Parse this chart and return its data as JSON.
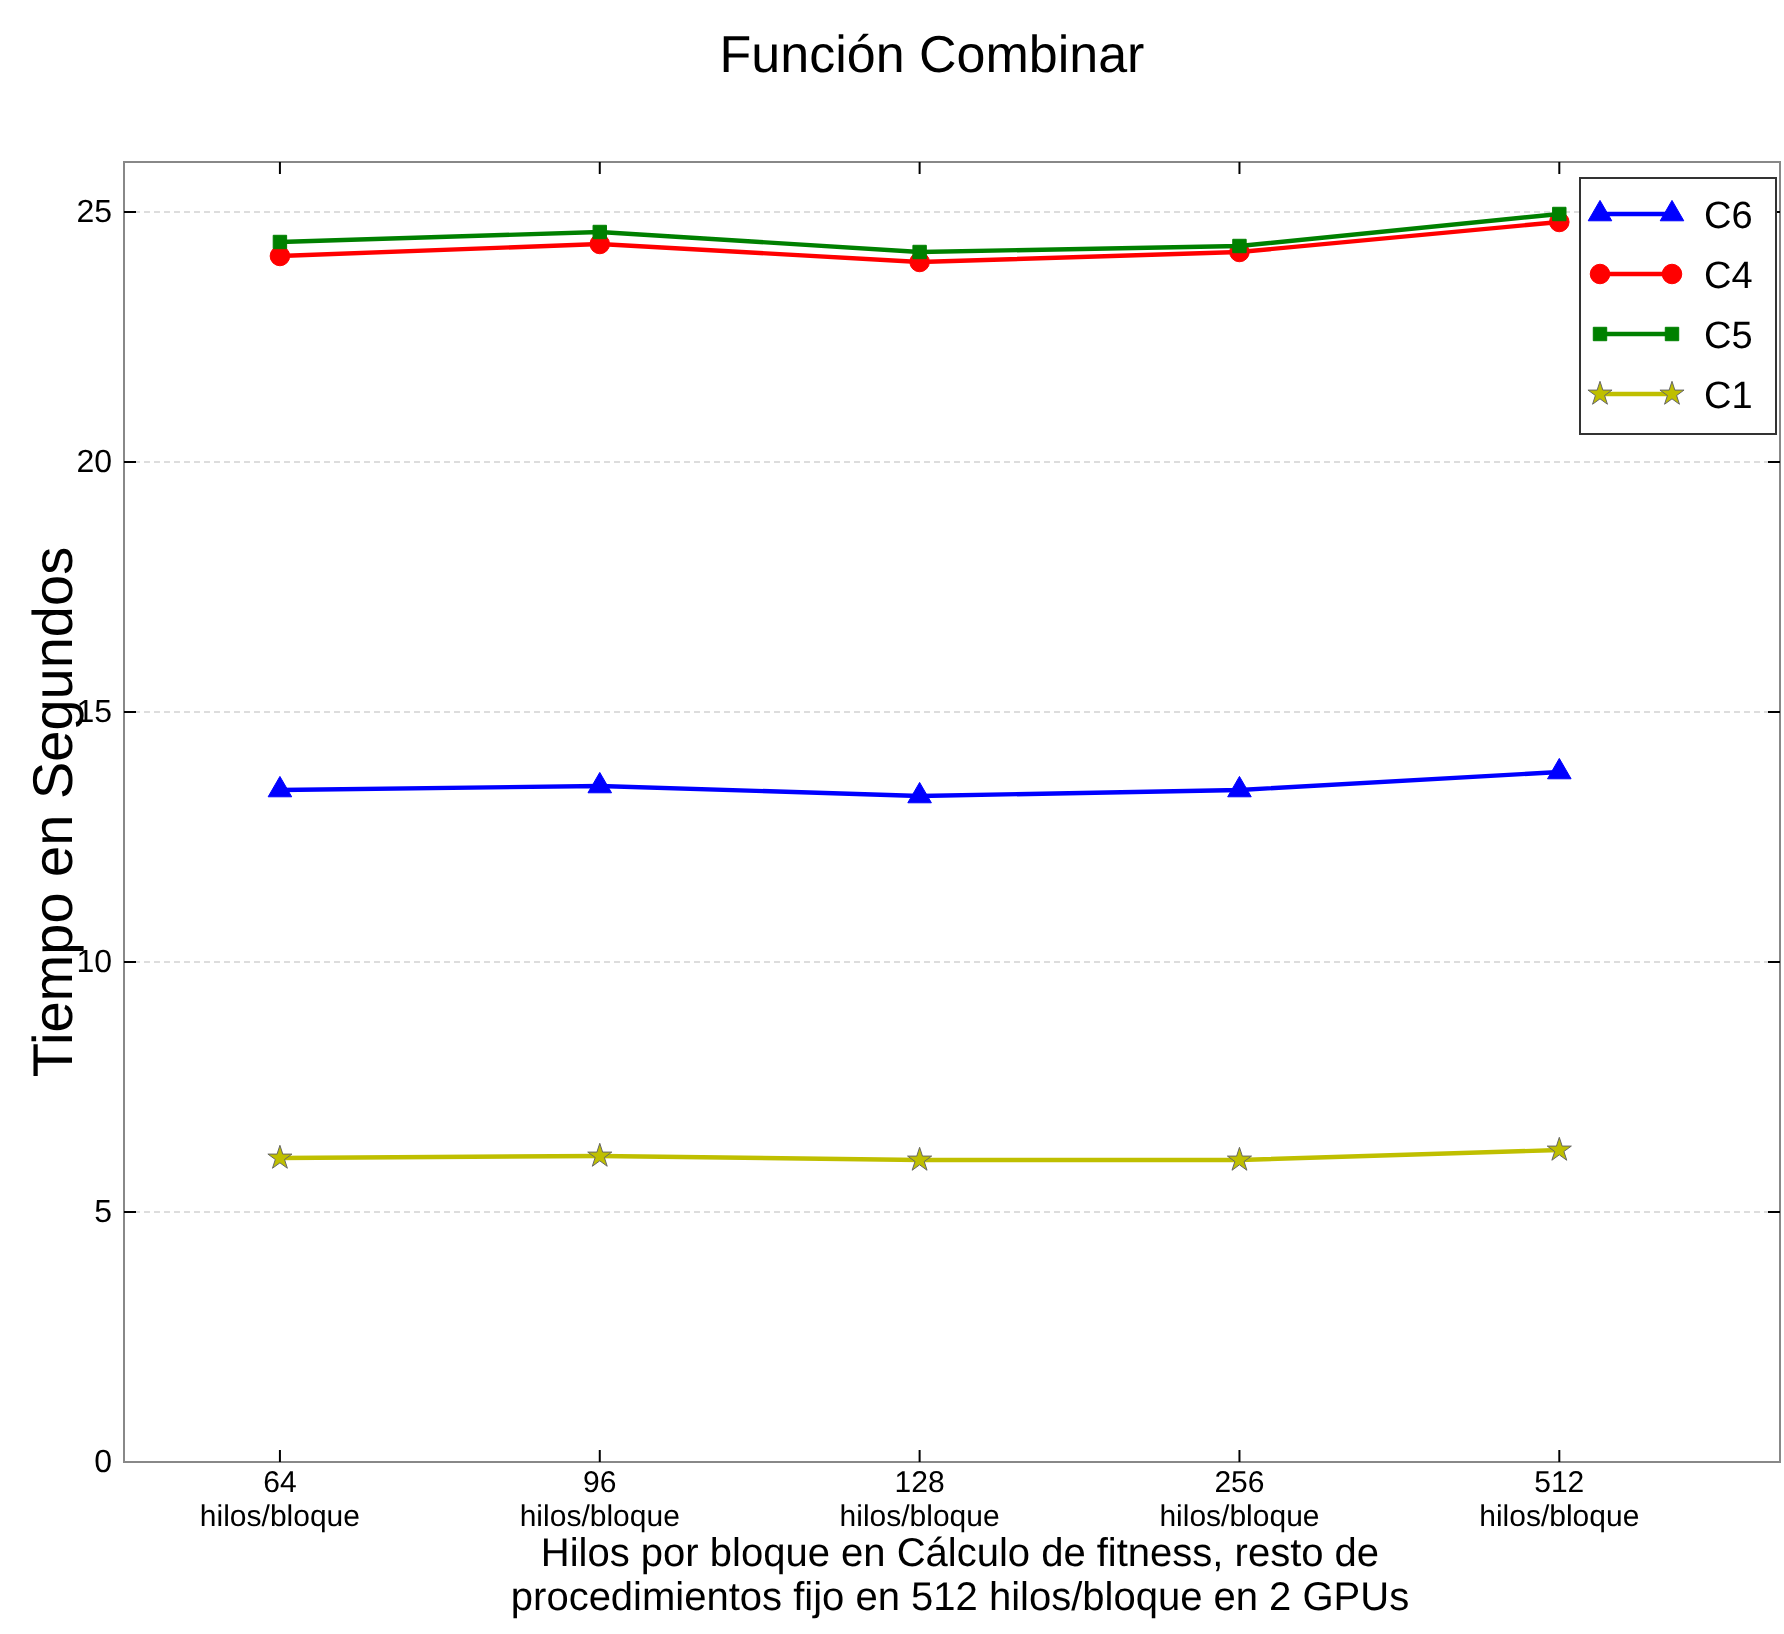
{
  "chart_data": {
    "type": "line",
    "title": "Función Combinar",
    "xlabel": "Hilos por bloque en Cálculo de fitness, resto de procedimientos fijo en 512 hilos/bloque en 2 GPUs",
    "ylabel": "Tiempo en Segundos",
    "categories": [
      "64 hilos/bloque",
      "96 hilos/bloque",
      "128 hilos/bloque",
      "256 hilos/bloque",
      "512 hilos/bloque"
    ],
    "ylim": [
      0,
      26
    ],
    "yticks": [
      0,
      5,
      10,
      15,
      20,
      25
    ],
    "grid": "y",
    "legend": "top right",
    "series": [
      {
        "name": "C6",
        "color": "#0000ff",
        "marker": "triangle",
        "values": [
          13.44,
          13.52,
          13.32,
          13.44,
          13.8
        ]
      },
      {
        "name": "C4",
        "color": "#ff0000",
        "marker": "circle",
        "values": [
          24.12,
          24.36,
          24.0,
          24.2,
          24.8
        ]
      },
      {
        "name": "C5",
        "color": "#008000",
        "marker": "square",
        "values": [
          24.4,
          24.6,
          24.2,
          24.32,
          24.96
        ]
      },
      {
        "name": "C1",
        "color": "#bfbf00",
        "marker": "star",
        "values": [
          6.08,
          6.12,
          6.04,
          6.04,
          6.24
        ]
      }
    ]
  }
}
